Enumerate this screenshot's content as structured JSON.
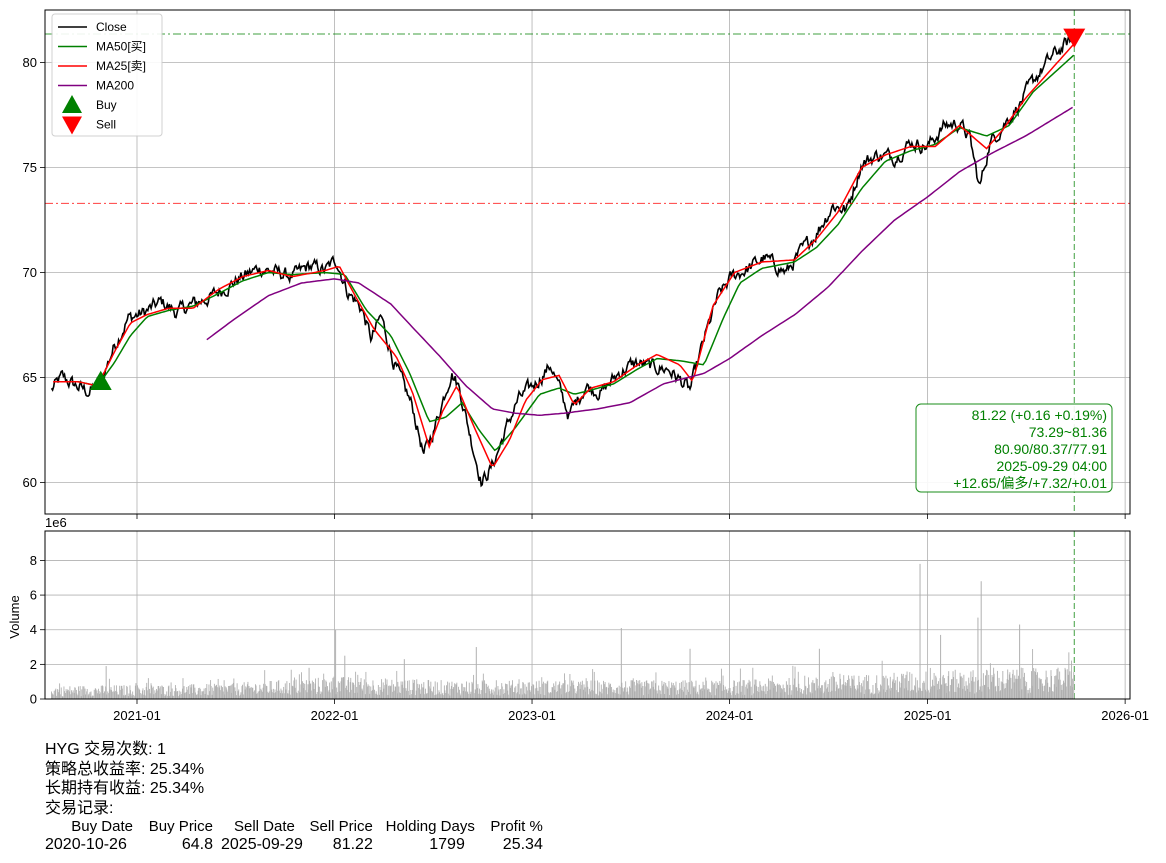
{
  "chart_data": [
    {
      "type": "line",
      "title": "",
      "xlabel": "",
      "ylabel": "",
      "ylim": [
        58.5,
        82.5
      ],
      "yticks": [
        60,
        65,
        70,
        75,
        80
      ],
      "xticks": [
        "2021-01",
        "2022-01",
        "2023-01",
        "2024-01",
        "2025-01",
        "2026-01"
      ],
      "xlim": [
        "2020-07-15",
        "2026-01-10"
      ],
      "grid": true,
      "legend_position": "top-left",
      "legend": [
        "Close",
        "MA50[买]",
        "MA25[卖]",
        "MA200",
        "Buy",
        "Sell"
      ],
      "series": [
        {
          "name": "Close",
          "color": "#000000",
          "points": [
            [
              "2020-07-27",
              64.4
            ],
            [
              "2020-08-15",
              65.0
            ],
            [
              "2020-09-10",
              64.6
            ],
            [
              "2020-10-05",
              64.3
            ],
            [
              "2020-10-26",
              64.8
            ],
            [
              "2020-11-20",
              66.5
            ],
            [
              "2020-12-15",
              67.8
            ],
            [
              "2021-01-15",
              68.1
            ],
            [
              "2021-02-15",
              68.6
            ],
            [
              "2021-03-15",
              68.1
            ],
            [
              "2021-04-15",
              68.5
            ],
            [
              "2021-05-15",
              68.8
            ],
            [
              "2021-06-15",
              69.3
            ],
            [
              "2021-07-15",
              69.8
            ],
            [
              "2021-08-15",
              70.2
            ],
            [
              "2021-09-15",
              70.0
            ],
            [
              "2021-10-15",
              69.8
            ],
            [
              "2021-11-15",
              70.3
            ],
            [
              "2021-12-15",
              70.1
            ],
            [
              "2022-01-05",
              70.6
            ],
            [
              "2022-01-25",
              69.1
            ],
            [
              "2022-02-20",
              68.3
            ],
            [
              "2022-03-10",
              66.8
            ],
            [
              "2022-03-28",
              67.9
            ],
            [
              "2022-04-20",
              65.8
            ],
            [
              "2022-05-10",
              64.5
            ],
            [
              "2022-05-25",
              63.6
            ],
            [
              "2022-06-15",
              61.3
            ],
            [
              "2022-07-05",
              62.6
            ],
            [
              "2022-08-05",
              65.3
            ],
            [
              "2022-08-20",
              64.5
            ],
            [
              "2022-09-10",
              62.1
            ],
            [
              "2022-09-30",
              60.0
            ],
            [
              "2022-10-20",
              60.8
            ],
            [
              "2022-11-15",
              62.6
            ],
            [
              "2022-12-05",
              63.9
            ],
            [
              "2023-01-10",
              64.8
            ],
            [
              "2023-02-05",
              65.6
            ],
            [
              "2023-03-10",
              63.2
            ],
            [
              "2023-04-10",
              64.6
            ],
            [
              "2023-05-10",
              64.3
            ],
            [
              "2023-06-10",
              65.2
            ],
            [
              "2023-07-10",
              65.7
            ],
            [
              "2023-08-10",
              65.5
            ],
            [
              "2023-09-10",
              65.4
            ],
            [
              "2023-10-20",
              64.4
            ],
            [
              "2023-11-15",
              66.8
            ],
            [
              "2023-12-10",
              68.8
            ],
            [
              "2024-01-05",
              69.8
            ],
            [
              "2024-02-05",
              70.2
            ],
            [
              "2024-03-05",
              70.7
            ],
            [
              "2024-04-15",
              70.0
            ],
            [
              "2024-05-10",
              70.9
            ],
            [
              "2024-06-10",
              71.9
            ],
            [
              "2024-07-10",
              73.2
            ],
            [
              "2024-08-05",
              73.0
            ],
            [
              "2024-09-01",
              75.2
            ],
            [
              "2024-10-01",
              75.6
            ],
            [
              "2024-11-01",
              75.5
            ],
            [
              "2024-12-01",
              76.2
            ],
            [
              "2025-01-01",
              76.0
            ],
            [
              "2025-02-01",
              77.0
            ],
            [
              "2025-03-01",
              77.1
            ],
            [
              "2025-03-20",
              76.4
            ],
            [
              "2025-04-07",
              74.0
            ],
            [
              "2025-04-25",
              76.1
            ],
            [
              "2025-05-20",
              77.0
            ],
            [
              "2025-06-20",
              78.0
            ],
            [
              "2025-07-20",
              79.3
            ],
            [
              "2025-08-20",
              80.3
            ],
            [
              "2025-09-29",
              81.22
            ]
          ]
        },
        {
          "name": "MA50[买]",
          "color": "#008000",
          "points": [
            [
              "2020-08-10",
              64.8
            ],
            [
              "2020-09-15",
              64.8
            ],
            [
              "2020-10-20",
              64.6
            ],
            [
              "2020-11-20",
              65.7
            ],
            [
              "2020-12-20",
              67.0
            ],
            [
              "2021-01-20",
              67.9
            ],
            [
              "2021-03-01",
              68.2
            ],
            [
              "2021-04-15",
              68.4
            ],
            [
              "2021-06-01",
              69.0
            ],
            [
              "2021-07-15",
              69.6
            ],
            [
              "2021-09-01",
              70.0
            ],
            [
              "2021-10-15",
              69.9
            ],
            [
              "2021-12-15",
              70.0
            ],
            [
              "2022-01-20",
              69.9
            ],
            [
              "2022-03-01",
              68.2
            ],
            [
              "2022-04-15",
              67.0
            ],
            [
              "2022-05-20",
              65.2
            ],
            [
              "2022-06-25",
              62.9
            ],
            [
              "2022-07-25",
              63.1
            ],
            [
              "2022-08-25",
              63.8
            ],
            [
              "2022-09-25",
              62.5
            ],
            [
              "2022-10-25",
              61.5
            ],
            [
              "2022-12-01",
              62.6
            ],
            [
              "2023-01-15",
              64.2
            ],
            [
              "2023-02-20",
              64.5
            ],
            [
              "2023-03-20",
              64.2
            ],
            [
              "2023-04-20",
              64.4
            ],
            [
              "2023-06-01",
              64.7
            ],
            [
              "2023-07-15",
              65.4
            ],
            [
              "2023-08-20",
              65.9
            ],
            [
              "2023-10-01",
              65.8
            ],
            [
              "2023-11-15",
              65.6
            ],
            [
              "2023-12-20",
              67.8
            ],
            [
              "2024-01-20",
              69.5
            ],
            [
              "2024-03-01",
              70.2
            ],
            [
              "2024-04-30",
              70.5
            ],
            [
              "2024-06-10",
              71.2
            ],
            [
              "2024-07-20",
              72.3
            ],
            [
              "2024-09-01",
              74.0
            ],
            [
              "2024-10-15",
              75.3
            ],
            [
              "2024-12-01",
              75.8
            ],
            [
              "2025-01-15",
              76.1
            ],
            [
              "2025-03-01",
              76.9
            ],
            [
              "2025-04-20",
              76.5
            ],
            [
              "2025-06-01",
              77.0
            ],
            [
              "2025-07-15",
              78.6
            ],
            [
              "2025-09-29",
              80.37
            ]
          ]
        },
        {
          "name": "MA25[卖]",
          "color": "#ff0000",
          "points": [
            [
              "2020-07-30",
              64.8
            ],
            [
              "2020-09-15",
              64.8
            ],
            [
              "2020-10-20",
              64.6
            ],
            [
              "2020-11-20",
              66.2
            ],
            [
              "2020-12-20",
              67.6
            ],
            [
              "2021-01-20",
              68.0
            ],
            [
              "2021-03-01",
              68.3
            ],
            [
              "2021-04-15",
              68.3
            ],
            [
              "2021-06-01",
              69.2
            ],
            [
              "2021-07-15",
              69.8
            ],
            [
              "2021-09-01",
              70.1
            ],
            [
              "2021-10-15",
              69.8
            ],
            [
              "2021-12-15",
              70.1
            ],
            [
              "2022-01-10",
              70.3
            ],
            [
              "2022-02-10",
              68.8
            ],
            [
              "2022-03-15",
              67.3
            ],
            [
              "2022-04-25",
              66.0
            ],
            [
              "2022-05-25",
              64.3
            ],
            [
              "2022-06-25",
              61.7
            ],
            [
              "2022-07-20",
              63.4
            ],
            [
              "2022-08-15",
              64.6
            ],
            [
              "2022-09-15",
              62.7
            ],
            [
              "2022-10-20",
              60.7
            ],
            [
              "2022-11-20",
              62.0
            ],
            [
              "2022-12-20",
              63.9
            ],
            [
              "2023-01-20",
              64.9
            ],
            [
              "2023-02-20",
              65.1
            ],
            [
              "2023-03-20",
              63.7
            ],
            [
              "2023-04-20",
              64.5
            ],
            [
              "2023-06-01",
              64.8
            ],
            [
              "2023-07-15",
              65.6
            ],
            [
              "2023-08-20",
              66.1
            ],
            [
              "2023-10-01",
              65.6
            ],
            [
              "2023-10-25",
              64.8
            ],
            [
              "2023-12-01",
              68.4
            ],
            [
              "2024-01-10",
              70.0
            ],
            [
              "2024-03-01",
              70.5
            ],
            [
              "2024-04-30",
              70.6
            ],
            [
              "2024-06-10",
              71.6
            ],
            [
              "2024-07-20",
              72.9
            ],
            [
              "2024-09-01",
              75.0
            ],
            [
              "2024-10-15",
              75.6
            ],
            [
              "2024-12-01",
              76.0
            ],
            [
              "2025-01-15",
              76.0
            ],
            [
              "2025-03-01",
              77.0
            ],
            [
              "2025-04-20",
              75.9
            ],
            [
              "2025-05-20",
              76.8
            ],
            [
              "2025-07-01",
              78.3
            ],
            [
              "2025-09-29",
              80.9
            ]
          ]
        },
        {
          "name": "MA200",
          "color": "#800080",
          "points": [
            [
              "2021-05-10",
              66.8
            ],
            [
              "2021-07-01",
              67.8
            ],
            [
              "2021-09-01",
              68.9
            ],
            [
              "2021-11-01",
              69.5
            ],
            [
              "2022-01-01",
              69.7
            ],
            [
              "2022-02-15",
              69.5
            ],
            [
              "2022-04-15",
              68.5
            ],
            [
              "2022-06-01",
              67.2
            ],
            [
              "2022-07-15",
              66.0
            ],
            [
              "2022-09-01",
              64.6
            ],
            [
              "2022-10-20",
              63.5
            ],
            [
              "2022-12-01",
              63.3
            ],
            [
              "2023-01-15",
              63.2
            ],
            [
              "2023-03-01",
              63.3
            ],
            [
              "2023-05-01",
              63.5
            ],
            [
              "2023-07-01",
              63.8
            ],
            [
              "2023-09-01",
              64.7
            ],
            [
              "2023-11-15",
              65.2
            ],
            [
              "2024-01-01",
              65.9
            ],
            [
              "2024-03-01",
              67.0
            ],
            [
              "2024-05-01",
              68.0
            ],
            [
              "2024-07-01",
              69.3
            ],
            [
              "2024-09-01",
              71.0
            ],
            [
              "2024-11-01",
              72.5
            ],
            [
              "2025-01-01",
              73.6
            ],
            [
              "2025-03-01",
              74.8
            ],
            [
              "2025-05-01",
              75.7
            ],
            [
              "2025-07-01",
              76.5
            ],
            [
              "2025-09-29",
              77.91
            ]
          ]
        }
      ],
      "markers": [
        {
          "name": "Buy",
          "date": "2020-10-26",
          "price": 64.8,
          "color": "#008000"
        },
        {
          "name": "Sell",
          "date": "2025-09-29",
          "price": 81.22,
          "color": "#ff0000"
        }
      ],
      "hlines": [
        {
          "value": 81.36,
          "color": "#008000"
        },
        {
          "value": 73.29,
          "color": "#ff0000"
        }
      ],
      "vline": {
        "date": "2025-09-29",
        "color": "#008000"
      },
      "info_box": [
        "81.22 (+0.16 +0.19%)",
        "73.29~81.36",
        "80.90/80.37/77.91",
        "2025-09-29 04:00",
        "+12.65/偏多/+7.32/+0.01"
      ]
    },
    {
      "type": "bar",
      "ylabel": "Volume",
      "scale_label": "1e6",
      "ylim": [
        0,
        9.7
      ],
      "yticks": [
        0,
        2,
        4,
        6,
        8
      ],
      "xticks": [
        "2021-01",
        "2022-01",
        "2023-01",
        "2024-01",
        "2025-01",
        "2026-01"
      ],
      "bar_color": "#b0b0b0",
      "base_level_by_period": [
        [
          "2020-07-27",
          0.7
        ],
        [
          "2021-06-01",
          0.8
        ],
        [
          "2022-01-01",
          1.2
        ],
        [
          "2022-07-01",
          1.0
        ],
        [
          "2023-01-01",
          1.0
        ],
        [
          "2023-07-01",
          1.0
        ],
        [
          "2024-01-01",
          1.0
        ],
        [
          "2024-07-01",
          1.2
        ],
        [
          "2025-01-01",
          1.5
        ],
        [
          "2025-09-29",
          1.7
        ]
      ],
      "spikes": [
        [
          "2020-11-05",
          1.9
        ],
        [
          "2021-11-15",
          1.8
        ],
        [
          "2022-01-03",
          4.0
        ],
        [
          "2022-01-20",
          2.5
        ],
        [
          "2022-05-10",
          2.3
        ],
        [
          "2022-09-20",
          3.0
        ],
        [
          "2023-06-15",
          4.1
        ],
        [
          "2023-10-20",
          2.9
        ],
        [
          "2024-06-15",
          2.9
        ],
        [
          "2024-12-18",
          7.8
        ],
        [
          "2025-01-25",
          3.7
        ],
        [
          "2025-04-04",
          4.7
        ],
        [
          "2025-04-10",
          6.8
        ],
        [
          "2025-06-20",
          4.3
        ]
      ]
    }
  ],
  "summary": {
    "trades": "HYG 交易次数: 1",
    "strategy_return": "策略总收益率: 25.34%",
    "hold_return": "长期持有收益: 25.34%",
    "records_title": "交易记录:"
  },
  "trade_table": {
    "headers": [
      "Buy Date",
      "Buy Price",
      "Sell Date",
      "Sell Price",
      "Holding Days",
      "Profit %"
    ],
    "rows": [
      [
        "2020-10-26",
        "64.8",
        "2025-09-29",
        "81.22",
        "1799",
        "25.34"
      ]
    ]
  }
}
